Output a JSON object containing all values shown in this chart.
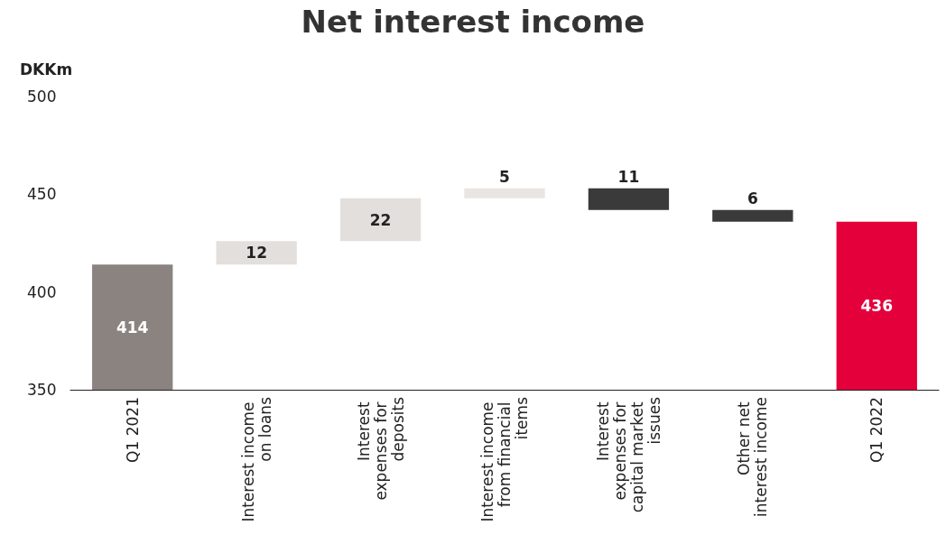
{
  "chart_data": {
    "type": "bar",
    "title": "Net interest income",
    "ylabel": "DKKm",
    "categories": [
      "Q1 2021",
      "Interest income on loans",
      "Interest expenses for deposits",
      "Interest income from financial items",
      "Interest expenses for capital market issues",
      "Other net interest income",
      "Q1 2022"
    ],
    "values": [
      414,
      12,
      22,
      5,
      -11,
      -6,
      436
    ],
    "base": [
      null,
      414,
      426,
      448,
      453,
      442,
      null
    ],
    "colors": [
      "#8b8380",
      "#e3dfdc",
      "#e3dfdc",
      "#e8e5e3",
      "#3a3a3a",
      "#3a3a3a",
      "#e4003b"
    ],
    "value_labels": [
      "414",
      "12",
      "22",
      "5",
      "11",
      "6",
      "436"
    ],
    "ylim": [
      350,
      500
    ],
    "yticks": [
      350,
      400,
      450,
      500
    ],
    "grid": false
  }
}
